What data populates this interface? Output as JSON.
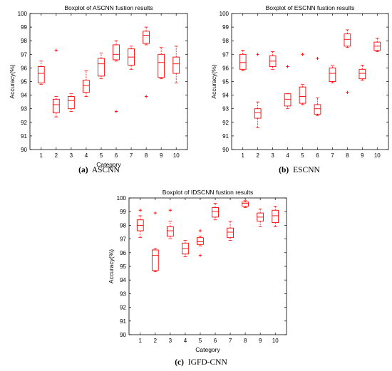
{
  "figure": {
    "panels": [
      {
        "id": "a",
        "caption_label": "(a)",
        "caption_text": "ASCNN"
      },
      {
        "id": "b",
        "caption_label": "(b)",
        "caption_text": "ESCNN"
      },
      {
        "id": "c",
        "caption_label": "(c)",
        "caption_text": "IGFD-CNN"
      }
    ]
  },
  "chart_data": [
    {
      "type": "boxplot",
      "title": "Boxplot of ASCNN fustion results",
      "xlabel": "Category",
      "ylabel": "Accuracy(%)",
      "ylim": [
        90,
        100
      ],
      "yticks": [
        90,
        91,
        92,
        93,
        94,
        95,
        96,
        97,
        98,
        99,
        100
      ],
      "categories": [
        "1",
        "2",
        "3",
        "4",
        "5",
        "6",
        "7",
        "8",
        "9",
        "10"
      ],
      "color": "#ff0000",
      "boxes": [
        {
          "min": 94.8,
          "q1": 94.9,
          "median": 95.6,
          "q3": 96.1,
          "max": 96.5,
          "outliers": []
        },
        {
          "min": 92.4,
          "q1": 92.7,
          "median": 93.3,
          "q3": 93.7,
          "max": 93.9,
          "outliers": [
            97.3
          ]
        },
        {
          "min": 92.8,
          "q1": 93.0,
          "median": 93.6,
          "q3": 93.9,
          "max": 94.1,
          "outliers": []
        },
        {
          "min": 93.9,
          "q1": 94.2,
          "median": 94.7,
          "q3": 95.1,
          "max": 95.8,
          "outliers": []
        },
        {
          "min": 95.2,
          "q1": 95.4,
          "median": 96.3,
          "q3": 96.7,
          "max": 97.1,
          "outliers": []
        },
        {
          "min": 96.5,
          "q1": 96.6,
          "median": 97.0,
          "q3": 97.7,
          "max": 98.0,
          "outliers": [
            92.8
          ]
        },
        {
          "min": 95.9,
          "q1": 96.2,
          "median": 96.8,
          "q3": 97.4,
          "max": 97.6,
          "outliers": []
        },
        {
          "min": 97.7,
          "q1": 97.8,
          "median": 98.4,
          "q3": 98.7,
          "max": 99.0,
          "outliers": [
            93.9
          ]
        },
        {
          "min": 95.2,
          "q1": 95.3,
          "median": 96.4,
          "q3": 97.0,
          "max": 97.5,
          "outliers": []
        },
        {
          "min": 94.9,
          "q1": 95.6,
          "median": 96.3,
          "q3": 96.8,
          "max": 97.6,
          "outliers": []
        }
      ]
    },
    {
      "type": "boxplot",
      "title": "Boxplot of ESCNN fustion results",
      "xlabel": "",
      "ylabel": "Accuracy(%)",
      "ylim": [
        90,
        100
      ],
      "yticks": [
        90,
        91,
        92,
        93,
        94,
        95,
        96,
        97,
        98,
        99,
        100
      ],
      "categories": [
        "1",
        "2",
        "3",
        "4",
        "5",
        "6",
        "7",
        "8",
        "9",
        "10"
      ],
      "color": "#ff0000",
      "boxes": [
        {
          "min": 95.8,
          "q1": 95.9,
          "median": 96.4,
          "q3": 97.0,
          "max": 97.3,
          "outliers": []
        },
        {
          "min": 91.6,
          "q1": 92.3,
          "median": 92.7,
          "q3": 93.0,
          "max": 93.5,
          "outliers": [
            97.0
          ]
        },
        {
          "min": 95.9,
          "q1": 96.1,
          "median": 96.5,
          "q3": 96.9,
          "max": 97.2,
          "outliers": []
        },
        {
          "min": 93.0,
          "q1": 93.2,
          "median": 93.7,
          "q3": 94.1,
          "max": 94.1,
          "outliers": [
            96.1
          ]
        },
        {
          "min": 93.3,
          "q1": 93.4,
          "median": 93.9,
          "q3": 94.6,
          "max": 94.8,
          "outliers": [
            97.0
          ]
        },
        {
          "min": 92.5,
          "q1": 92.6,
          "median": 93.0,
          "q3": 93.3,
          "max": 93.8,
          "outliers": [
            96.7
          ]
        },
        {
          "min": 94.9,
          "q1": 95.0,
          "median": 95.6,
          "q3": 96.0,
          "max": 96.2,
          "outliers": []
        },
        {
          "min": 97.5,
          "q1": 97.6,
          "median": 98.1,
          "q3": 98.5,
          "max": 98.8,
          "outliers": [
            94.2
          ]
        },
        {
          "min": 95.1,
          "q1": 95.2,
          "median": 95.6,
          "q3": 95.9,
          "max": 96.2,
          "outliers": []
        },
        {
          "min": 97.2,
          "q1": 97.3,
          "median": 97.6,
          "q3": 97.9,
          "max": 98.2,
          "outliers": []
        }
      ]
    },
    {
      "type": "boxplot",
      "title": "Boxplot of IDSCNN fustion results",
      "xlabel": "Category",
      "ylabel": "Accuracy(%)",
      "ylim": [
        90,
        100
      ],
      "yticks": [
        90,
        91,
        92,
        93,
        94,
        95,
        96,
        97,
        98,
        99,
        100
      ],
      "categories": [
        "1",
        "2",
        "3",
        "4",
        "5",
        "6",
        "7",
        "8",
        "9",
        "10"
      ],
      "color": "#ff0000",
      "boxes": [
        {
          "min": 97.1,
          "q1": 97.6,
          "median": 98.0,
          "q3": 98.4,
          "max": 98.7,
          "outliers": [
            99.1
          ]
        },
        {
          "min": 94.6,
          "q1": 94.7,
          "median": 95.8,
          "q3": 96.2,
          "max": 96.3,
          "outliers": [
            98.9
          ]
        },
        {
          "min": 97.0,
          "q1": 97.2,
          "median": 97.6,
          "q3": 97.9,
          "max": 98.3,
          "outliers": [
            99.1
          ]
        },
        {
          "min": 95.7,
          "q1": 95.9,
          "median": 96.3,
          "q3": 96.7,
          "max": 96.9,
          "outliers": []
        },
        {
          "min": 96.5,
          "q1": 96.6,
          "median": 96.8,
          "q3": 97.1,
          "max": 97.2,
          "outliers": [
            97.6,
            95.8
          ]
        },
        {
          "min": 98.4,
          "q1": 98.6,
          "median": 99.0,
          "q3": 99.3,
          "max": 99.6,
          "outliers": []
        },
        {
          "min": 96.9,
          "q1": 97.1,
          "median": 97.5,
          "q3": 97.8,
          "max": 98.3,
          "outliers": []
        },
        {
          "min": 99.3,
          "q1": 99.4,
          "median": 99.6,
          "q3": 99.7,
          "max": 99.8,
          "outliers": []
        },
        {
          "min": 97.9,
          "q1": 98.3,
          "median": 98.6,
          "q3": 98.9,
          "max": 99.2,
          "outliers": []
        },
        {
          "min": 97.9,
          "q1": 98.2,
          "median": 98.7,
          "q3": 99.1,
          "max": 99.4,
          "outliers": []
        }
      ]
    }
  ]
}
